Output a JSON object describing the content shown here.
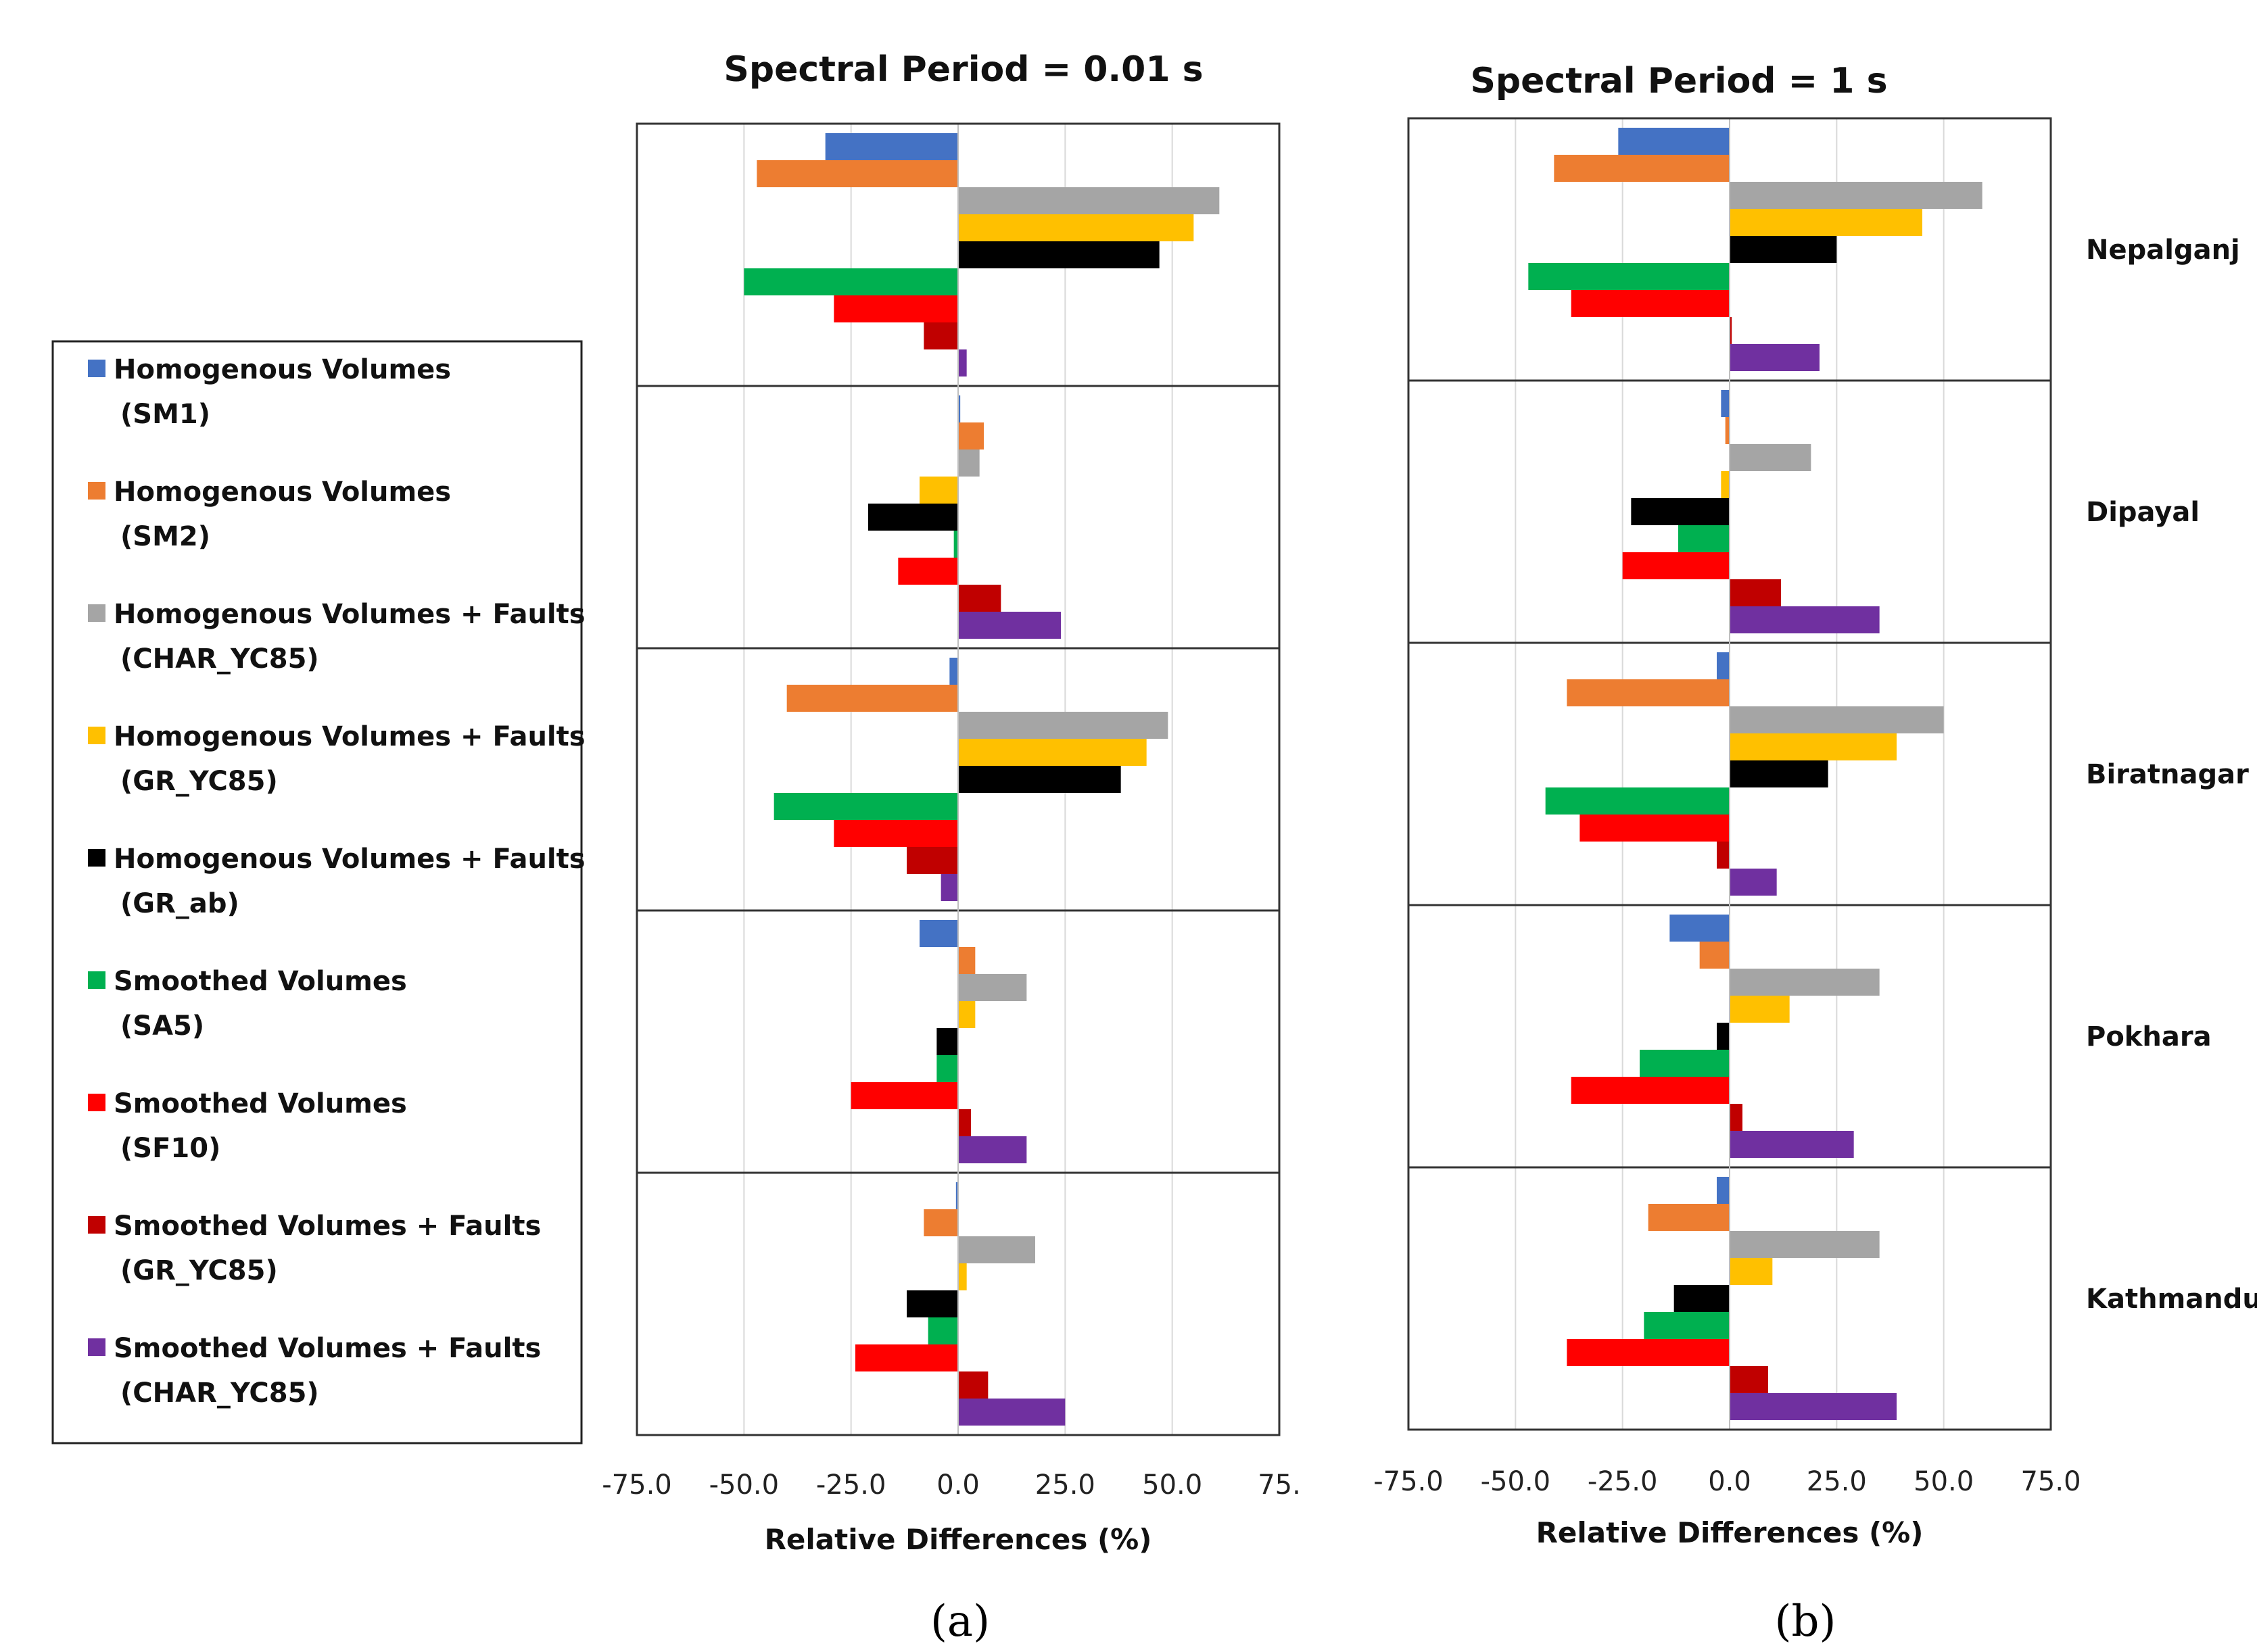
{
  "chart_data": [
    {
      "type": "bar",
      "orientation": "horizontal",
      "title": "Spectral Period = 0.01 s",
      "xlabel": "Relative Differences (%)",
      "xlim": [
        -75,
        75
      ],
      "xticks": [
        "-75.0",
        "-50.0",
        "-25.0",
        "0.0",
        "25.0",
        "50.0",
        "75."
      ],
      "grid": "vertical",
      "categories": [
        "Nepalganj",
        "Dipayal",
        "Biratnagar",
        "Pokhara",
        "Kathmandu"
      ],
      "series": [
        {
          "name": "SM1",
          "values": [
            -31,
            0.5,
            -2,
            -9,
            -0.5
          ]
        },
        {
          "name": "SM2",
          "values": [
            -47,
            6,
            -40,
            4,
            -8
          ]
        },
        {
          "name": "CHAR_YC85",
          "values": [
            61,
            5,
            49,
            16,
            18
          ]
        },
        {
          "name": "GR_YC85",
          "values": [
            55,
            -9,
            44,
            4,
            2
          ]
        },
        {
          "name": "GR_ab",
          "values": [
            47,
            -21,
            38,
            -5,
            -12
          ]
        },
        {
          "name": "SA5",
          "values": [
            -50,
            -1,
            -43,
            -5,
            -7
          ]
        },
        {
          "name": "SF10",
          "values": [
            -29,
            -14,
            -29,
            -25,
            -24
          ]
        },
        {
          "name": "GR_YC85",
          "values": [
            -8,
            10,
            -12,
            3,
            7
          ]
        },
        {
          "name": "CHAR_YC85",
          "values": [
            2,
            24,
            -4,
            16,
            25
          ]
        }
      ],
      "panel_label": "(a)"
    },
    {
      "type": "bar",
      "orientation": "horizontal",
      "title": "Spectral Period = 1 s",
      "xlabel": "Relative Differences (%)",
      "xlim": [
        -75,
        75
      ],
      "xticks": [
        "-75.0",
        "-50.0",
        "-25.0",
        "0.0",
        "25.0",
        "50.0",
        "75.0"
      ],
      "grid": "vertical",
      "categories": [
        "Nepalganj",
        "Dipayal",
        "Biratnagar",
        "Pokhara",
        "Kathmandu"
      ],
      "series": [
        {
          "name": "SM1",
          "values": [
            -26,
            -2,
            -3,
            -14,
            -3
          ]
        },
        {
          "name": "SM2",
          "values": [
            -41,
            -1,
            -38,
            -7,
            -19
          ]
        },
        {
          "name": "CHAR_YC85",
          "values": [
            59,
            19,
            50,
            35,
            35
          ]
        },
        {
          "name": "GR_YC85",
          "values": [
            45,
            -2,
            39,
            14,
            10
          ]
        },
        {
          "name": "GR_ab",
          "values": [
            25,
            -23,
            23,
            -3,
            -13
          ]
        },
        {
          "name": "SA5",
          "values": [
            -47,
            -12,
            -43,
            -21,
            -20
          ]
        },
        {
          "name": "SF10",
          "values": [
            -37,
            -25,
            -35,
            -37,
            -38
          ]
        },
        {
          "name": "GR_YC85",
          "values": [
            0.5,
            12,
            -3,
            3,
            9
          ]
        },
        {
          "name": "CHAR_YC85",
          "values": [
            21,
            35,
            11,
            29,
            39
          ]
        }
      ],
      "panel_label": "(b)"
    }
  ],
  "legend": {
    "placement": "left",
    "entries": [
      {
        "line1": "Homogenous Volumes",
        "line2": "(SM1)",
        "color": "#4472C4"
      },
      {
        "line1": "Homogenous Volumes",
        "line2": "(SM2)",
        "color": "#ED7D31"
      },
      {
        "line1": "Homogenous Volumes + Faults",
        "line2": "(CHAR_YC85)",
        "color": "#A5A5A5"
      },
      {
        "line1": "Homogenous Volumes + Faults",
        "line2": "(GR_YC85)",
        "color": "#FFC000"
      },
      {
        "line1": "Homogenous Volumes + Faults",
        "line2": "(GR_ab)",
        "color": "#000000"
      },
      {
        "line1": "Smoothed Volumes",
        "line2": "(SA5)",
        "color": "#00B050"
      },
      {
        "line1": "Smoothed Volumes",
        "line2": "(SF10)",
        "color": "#FF0000"
      },
      {
        "line1": "Smoothed Volumes + Faults",
        "line2": "(GR_YC85)",
        "color": "#C00000"
      },
      {
        "line1": "Smoothed Volumes + Faults",
        "line2": "(CHAR_YC85)",
        "color": "#7030A0"
      }
    ]
  }
}
